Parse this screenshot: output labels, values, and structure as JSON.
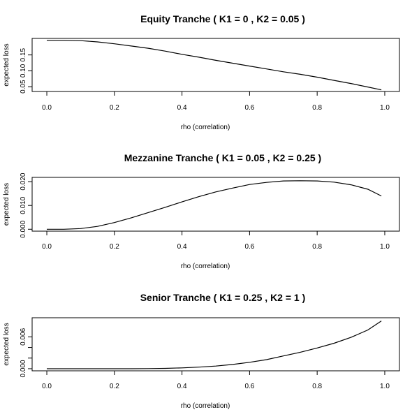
{
  "chart_data": [
    {
      "type": "line",
      "title": "Equity Tranche ( K1 =  0 , K2 =  0.05 )",
      "xlabel": "rho (correlation)",
      "ylabel": "expected loss",
      "xlim": [
        0.0,
        1.0
      ],
      "ylim": [
        0.035,
        0.202
      ],
      "xticks": [
        "0.0",
        "0.2",
        "0.4",
        "0.6",
        "0.8",
        "1.0"
      ],
      "yticks": [
        "0.05",
        "0.10",
        "0.15"
      ],
      "grid": false,
      "x": [
        0.0,
        0.05,
        0.1,
        0.15,
        0.2,
        0.25,
        0.3,
        0.35,
        0.4,
        0.45,
        0.5,
        0.55,
        0.6,
        0.65,
        0.7,
        0.75,
        0.8,
        0.85,
        0.9,
        0.95,
        0.99
      ],
      "y": [
        0.196,
        0.196,
        0.195,
        0.191,
        0.185,
        0.178,
        0.171,
        0.162,
        0.152,
        0.143,
        0.133,
        0.124,
        0.115,
        0.106,
        0.097,
        0.089,
        0.08,
        0.07,
        0.06,
        0.049,
        0.04
      ]
    },
    {
      "type": "line",
      "title": "Mezzanine Tranche ( K1 =  0.05 , K2 =  0.25 )",
      "xlabel": "rho (correlation)",
      "ylabel": "expected loss",
      "xlim": [
        0.0,
        1.0
      ],
      "ylim": [
        -0.0008,
        0.0218
      ],
      "xticks": [
        "0.0",
        "0.2",
        "0.4",
        "0.6",
        "0.8",
        "1.0"
      ],
      "yticks": [
        "0.000",
        "0.010",
        "0.020"
      ],
      "grid": false,
      "x": [
        0.0,
        0.05,
        0.1,
        0.15,
        0.2,
        0.25,
        0.3,
        0.35,
        0.4,
        0.45,
        0.5,
        0.55,
        0.6,
        0.65,
        0.7,
        0.75,
        0.8,
        0.85,
        0.9,
        0.95,
        0.99
      ],
      "y": [
        0.0,
        0.0,
        0.0003,
        0.0012,
        0.0028,
        0.0048,
        0.007,
        0.0092,
        0.0115,
        0.0137,
        0.0157,
        0.0173,
        0.0188,
        0.0197,
        0.0203,
        0.0204,
        0.0203,
        0.0198,
        0.0187,
        0.0168,
        0.014
      ]
    },
    {
      "type": "line",
      "title": "Senior Tranche ( K1 =  0.25 , K2 =  1 )",
      "xlabel": "rho (correlation)",
      "ylabel": "expected loss",
      "xlim": [
        0.0,
        1.0
      ],
      "ylim": [
        -0.0004,
        0.0096
      ],
      "xticks": [
        "0.0",
        "0.2",
        "0.4",
        "0.6",
        "0.8",
        "1.0"
      ],
      "yticks": [
        "0.000",
        "0.002",
        "0.004",
        "0.006"
      ],
      "ytick_values": [
        0.0,
        0.002,
        0.004,
        0.006
      ],
      "ytick_labels_shown": [
        "0.000",
        "",
        "",
        "0.006"
      ],
      "grid": false,
      "x": [
        0.0,
        0.05,
        0.1,
        0.15,
        0.2,
        0.25,
        0.3,
        0.35,
        0.4,
        0.45,
        0.5,
        0.55,
        0.6,
        0.65,
        0.7,
        0.75,
        0.8,
        0.85,
        0.9,
        0.95,
        0.99
      ],
      "y": [
        0.0,
        0.0,
        0.0,
        0.0,
        0.0,
        0.0,
        2e-05,
        6e-05,
        0.00015,
        0.0003,
        0.0005,
        0.0008,
        0.0012,
        0.0017,
        0.0024,
        0.0031,
        0.0039,
        0.0048,
        0.0059,
        0.0073,
        0.009
      ]
    }
  ]
}
